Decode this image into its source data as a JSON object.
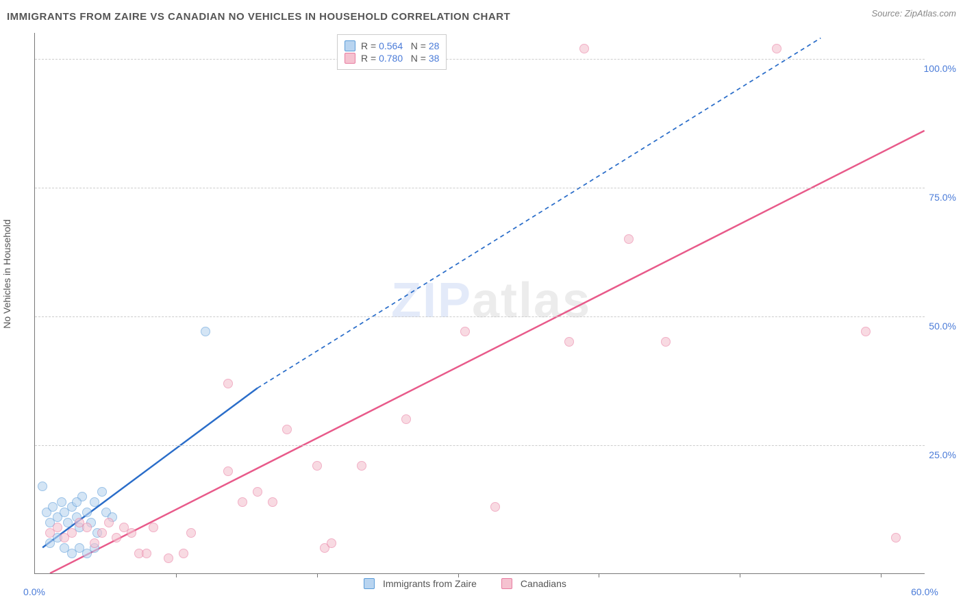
{
  "title": "IMMIGRANTS FROM ZAIRE VS CANADIAN NO VEHICLES IN HOUSEHOLD CORRELATION CHART",
  "source": "Source: ZipAtlas.com",
  "ylabel": "No Vehicles in Household",
  "watermark_a": "ZIP",
  "watermark_b": "atlas",
  "chart": {
    "type": "scatter",
    "xlim": [
      0,
      60
    ],
    "ylim": [
      0,
      105
    ],
    "xtick_positions": [
      0,
      60
    ],
    "xtick_labels": [
      "0.0%",
      "60.0%"
    ],
    "xtick_minor": [
      9.5,
      19,
      28.5,
      38,
      47.5,
      57
    ],
    "ytick_positions": [
      25,
      50,
      75,
      100
    ],
    "ytick_labels": [
      "25.0%",
      "50.0%",
      "75.0%",
      "100.0%"
    ],
    "grid_color": "#cccccc",
    "background": "#ffffff",
    "point_radius": 7,
    "point_opacity": 0.6,
    "series": [
      {
        "name": "Immigrants from Zaire",
        "color_fill": "#b8d4f0",
        "color_stroke": "#5a9bd8",
        "r_value": "0.564",
        "n_value": "28",
        "trend": {
          "x1": 0.5,
          "y1": 5,
          "x2": 15,
          "y2": 36,
          "dash_to_x": 53,
          "dash_to_y": 104,
          "color": "#2a6dc9",
          "width": 2.5
        },
        "points": [
          [
            0.5,
            17
          ],
          [
            0.8,
            12
          ],
          [
            1.0,
            10
          ],
          [
            1.2,
            13
          ],
          [
            1.5,
            11
          ],
          [
            1.8,
            14
          ],
          [
            2.0,
            12
          ],
          [
            2.2,
            10
          ],
          [
            2.5,
            13
          ],
          [
            2.8,
            11
          ],
          [
            3.0,
            9
          ],
          [
            3.2,
            15
          ],
          [
            3.5,
            12
          ],
          [
            3.8,
            10
          ],
          [
            4.0,
            14
          ],
          [
            4.2,
            8
          ],
          [
            4.5,
            16
          ],
          [
            4.8,
            12
          ],
          [
            5.2,
            11
          ],
          [
            2.0,
            5
          ],
          [
            2.5,
            4
          ],
          [
            3.0,
            5
          ],
          [
            3.5,
            4
          ],
          [
            1.0,
            6
          ],
          [
            1.5,
            7
          ],
          [
            2.8,
            14
          ],
          [
            11.5,
            47
          ],
          [
            4.0,
            5
          ]
        ]
      },
      {
        "name": "Canadians",
        "color_fill": "#f5c2d0",
        "color_stroke": "#e87ba0",
        "r_value": "0.780",
        "n_value": "38",
        "trend": {
          "x1": 1,
          "y1": 0,
          "x2": 60,
          "y2": 86,
          "color": "#e85a8a",
          "width": 2.5
        },
        "points": [
          [
            1.0,
            8
          ],
          [
            1.5,
            9
          ],
          [
            2.0,
            7
          ],
          [
            2.5,
            8
          ],
          [
            3.0,
            10
          ],
          [
            3.5,
            9
          ],
          [
            4.0,
            6
          ],
          [
            4.5,
            8
          ],
          [
            5.0,
            10
          ],
          [
            5.5,
            7
          ],
          [
            6.0,
            9
          ],
          [
            6.5,
            8
          ],
          [
            7.0,
            4
          ],
          [
            7.5,
            4
          ],
          [
            8.0,
            9
          ],
          [
            9.0,
            3
          ],
          [
            10.0,
            4
          ],
          [
            10.5,
            8
          ],
          [
            13.0,
            37
          ],
          [
            14.0,
            14
          ],
          [
            15.0,
            16
          ],
          [
            16.0,
            14
          ],
          [
            17.0,
            28
          ],
          [
            19.0,
            21
          ],
          [
            19.5,
            5
          ],
          [
            20.0,
            6
          ],
          [
            22.0,
            21
          ],
          [
            25.0,
            30
          ],
          [
            29.0,
            47
          ],
          [
            31.0,
            13
          ],
          [
            36.0,
            45
          ],
          [
            37.0,
            102
          ],
          [
            40.0,
            65
          ],
          [
            42.5,
            45
          ],
          [
            50.0,
            102
          ],
          [
            56.0,
            47
          ],
          [
            58.0,
            7
          ],
          [
            13.0,
            20
          ]
        ]
      }
    ]
  },
  "legend_top": {
    "font_size": 14,
    "label_color": "#555",
    "value_color": "#4a7bd8"
  },
  "legend_bottom": {
    "font_size": 14
  }
}
